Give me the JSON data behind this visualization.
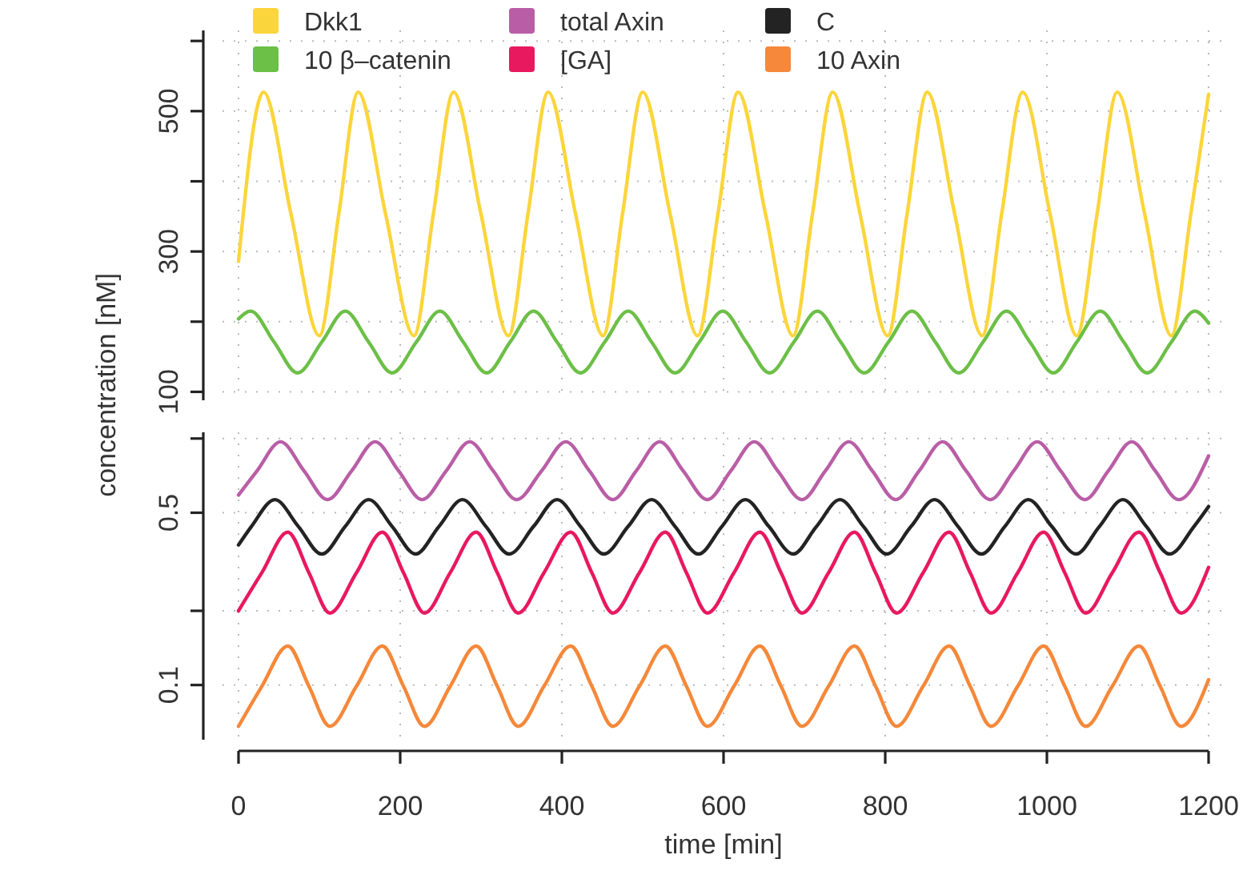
{
  "chart_data": [
    {
      "type": "line",
      "ylabel": "concentration [nM]",
      "xlim": [
        0,
        1200
      ],
      "xticks": [
        0,
        200,
        400,
        600,
        800,
        1000,
        1200
      ],
      "ylim": [
        88,
        615
      ],
      "yticks": [
        100,
        {
          "value": 200,
          "label": null
        },
        300,
        {
          "value": 400,
          "label": null
        },
        500,
        {
          "value": 600,
          "label": null
        }
      ],
      "tick_labels": "y",
      "grid": true,
      "legend": "top",
      "series": [
        {
          "name": "Dkk1",
          "color": "#fbd53c",
          "x": [
            0,
            31,
            65,
            100,
            124,
            148,
            182,
            217,
            241,
            266,
            300,
            334,
            358,
            383,
            417,
            451,
            475,
            500,
            534,
            568,
            593,
            618,
            652,
            686,
            710,
            735,
            769,
            803,
            827,
            852,
            886,
            920,
            944,
            970,
            1004,
            1037,
            1062,
            1087,
            1121,
            1154,
            1178,
            1200
          ],
          "values": [
            286,
            527,
            353,
            180,
            353,
            527,
            353,
            180,
            353,
            527,
            353,
            180,
            353,
            527,
            353,
            180,
            353,
            527,
            353,
            180,
            353,
            527,
            353,
            180,
            353,
            527,
            353,
            180,
            353,
            527,
            353,
            180,
            353,
            527,
            353,
            180,
            353,
            527,
            353,
            180,
            353,
            524
          ]
        },
        {
          "name": "10 β–catenin",
          "color": "#6cbf47",
          "x": [
            0,
            15,
            44,
            73,
            103,
            132,
            161,
            190,
            220,
            249,
            278,
            307,
            336,
            365,
            394,
            423,
            453,
            482,
            511,
            540,
            570,
            599,
            628,
            657,
            687,
            716,
            745,
            774,
            804,
            833,
            862,
            891,
            921,
            950,
            979,
            1008,
            1037,
            1066,
            1095,
            1124,
            1154,
            1183,
            1200
          ],
          "values": [
            204,
            215,
            171,
            127,
            171,
            215,
            171,
            127,
            171,
            215,
            171,
            127,
            171,
            215,
            171,
            127,
            171,
            215,
            171,
            127,
            171,
            215,
            171,
            127,
            171,
            215,
            171,
            127,
            171,
            215,
            171,
            127,
            171,
            215,
            171,
            127,
            171,
            215,
            171,
            127,
            171,
            215,
            198
          ]
        }
      ]
    },
    {
      "type": "line",
      "xlabel": "time [min]",
      "xlim": [
        0,
        1200
      ],
      "xticks": [
        0,
        200,
        400,
        600,
        800,
        1000,
        1200
      ],
      "ylim": [
        0.06,
        1.06
      ],
      "yticks": [
        0.1,
        {
          "value": 0.2,
          "label": null
        },
        0.5,
        {
          "value": 1,
          "label": null
        }
      ],
      "log": "y",
      "grid": true,
      "legend": "top",
      "series": [
        {
          "name": "total Axin",
          "color": "#b95ea6",
          "x": [
            0,
            23,
            52,
            81,
            110,
            140,
            169,
            198,
            227,
            257,
            286,
            315,
            344,
            375,
            405,
            434,
            463,
            492,
            521,
            550,
            580,
            609,
            638,
            667,
            697,
            726,
            755,
            784,
            813,
            842,
            871,
            900,
            930,
            959,
            988,
            1017,
            1047,
            1076,
            1105,
            1134,
            1163,
            1200
          ],
          "values": [
            0.59,
            0.74,
            0.97,
            0.74,
            0.565,
            0.74,
            0.97,
            0.74,
            0.565,
            0.74,
            0.97,
            0.74,
            0.565,
            0.74,
            0.97,
            0.74,
            0.565,
            0.74,
            0.97,
            0.74,
            0.565,
            0.74,
            0.97,
            0.74,
            0.565,
            0.74,
            0.97,
            0.74,
            0.565,
            0.74,
            0.97,
            0.74,
            0.565,
            0.74,
            0.97,
            0.74,
            0.565,
            0.74,
            0.97,
            0.74,
            0.565,
            0.85
          ]
        },
        {
          "name": "[GA]",
          "color": "#e8195e",
          "x": [
            0,
            29,
            61,
            87,
            113,
            146,
            178,
            204,
            230,
            262,
            294,
            320,
            346,
            378,
            411,
            437,
            463,
            496,
            528,
            554,
            580,
            613,
            645,
            671,
            697,
            730,
            762,
            788,
            814,
            847,
            879,
            905,
            931,
            964,
            996,
            1022,
            1048,
            1081,
            1114,
            1140,
            1166,
            1200
          ],
          "values": [
            0.2,
            0.286,
            0.417,
            0.286,
            0.196,
            0.286,
            0.417,
            0.286,
            0.196,
            0.286,
            0.417,
            0.286,
            0.196,
            0.286,
            0.417,
            0.286,
            0.196,
            0.286,
            0.417,
            0.286,
            0.196,
            0.286,
            0.417,
            0.286,
            0.196,
            0.286,
            0.417,
            0.286,
            0.196,
            0.286,
            0.417,
            0.286,
            0.196,
            0.286,
            0.417,
            0.286,
            0.196,
            0.286,
            0.417,
            0.286,
            0.196,
            0.3
          ]
        },
        {
          "name": "C",
          "color": "#232323",
          "x": [
            0,
            16,
            45,
            74,
            103,
            132,
            161,
            190,
            219,
            248,
            277,
            306,
            335,
            365,
            394,
            423,
            452,
            482,
            511,
            540,
            569,
            598,
            627,
            656,
            686,
            715,
            744,
            773,
            802,
            832,
            861,
            890,
            919,
            948,
            977,
            1006,
            1036,
            1065,
            1094,
            1123,
            1152,
            1182,
            1200
          ],
          "values": [
            0.37,
            0.44,
            0.565,
            0.44,
            0.34,
            0.44,
            0.565,
            0.44,
            0.34,
            0.44,
            0.565,
            0.44,
            0.34,
            0.44,
            0.565,
            0.44,
            0.34,
            0.44,
            0.565,
            0.44,
            0.34,
            0.44,
            0.565,
            0.44,
            0.34,
            0.44,
            0.565,
            0.44,
            0.34,
            0.44,
            0.565,
            0.44,
            0.34,
            0.44,
            0.565,
            0.44,
            0.34,
            0.44,
            0.565,
            0.44,
            0.34,
            0.44,
            0.53
          ]
        },
        {
          "name": "10 Axin",
          "color": "#f5883a",
          "x": [
            0,
            29,
            61,
            87,
            113,
            146,
            178,
            204,
            230,
            262,
            294,
            320,
            346,
            378,
            411,
            437,
            463,
            496,
            528,
            554,
            580,
            613,
            645,
            671,
            697,
            730,
            762,
            788,
            814,
            847,
            879,
            905,
            931,
            964,
            996,
            1022,
            1048,
            1081,
            1114,
            1140,
            1166,
            1200
          ],
          "values": [
            0.068,
            0.099,
            0.144,
            0.099,
            0.068,
            0.099,
            0.144,
            0.099,
            0.068,
            0.099,
            0.144,
            0.099,
            0.068,
            0.099,
            0.144,
            0.099,
            0.068,
            0.099,
            0.144,
            0.099,
            0.068,
            0.099,
            0.144,
            0.099,
            0.068,
            0.099,
            0.144,
            0.099,
            0.068,
            0.099,
            0.144,
            0.099,
            0.068,
            0.099,
            0.144,
            0.099,
            0.068,
            0.099,
            0.144,
            0.099,
            0.068,
            0.105
          ]
        }
      ]
    }
  ]
}
